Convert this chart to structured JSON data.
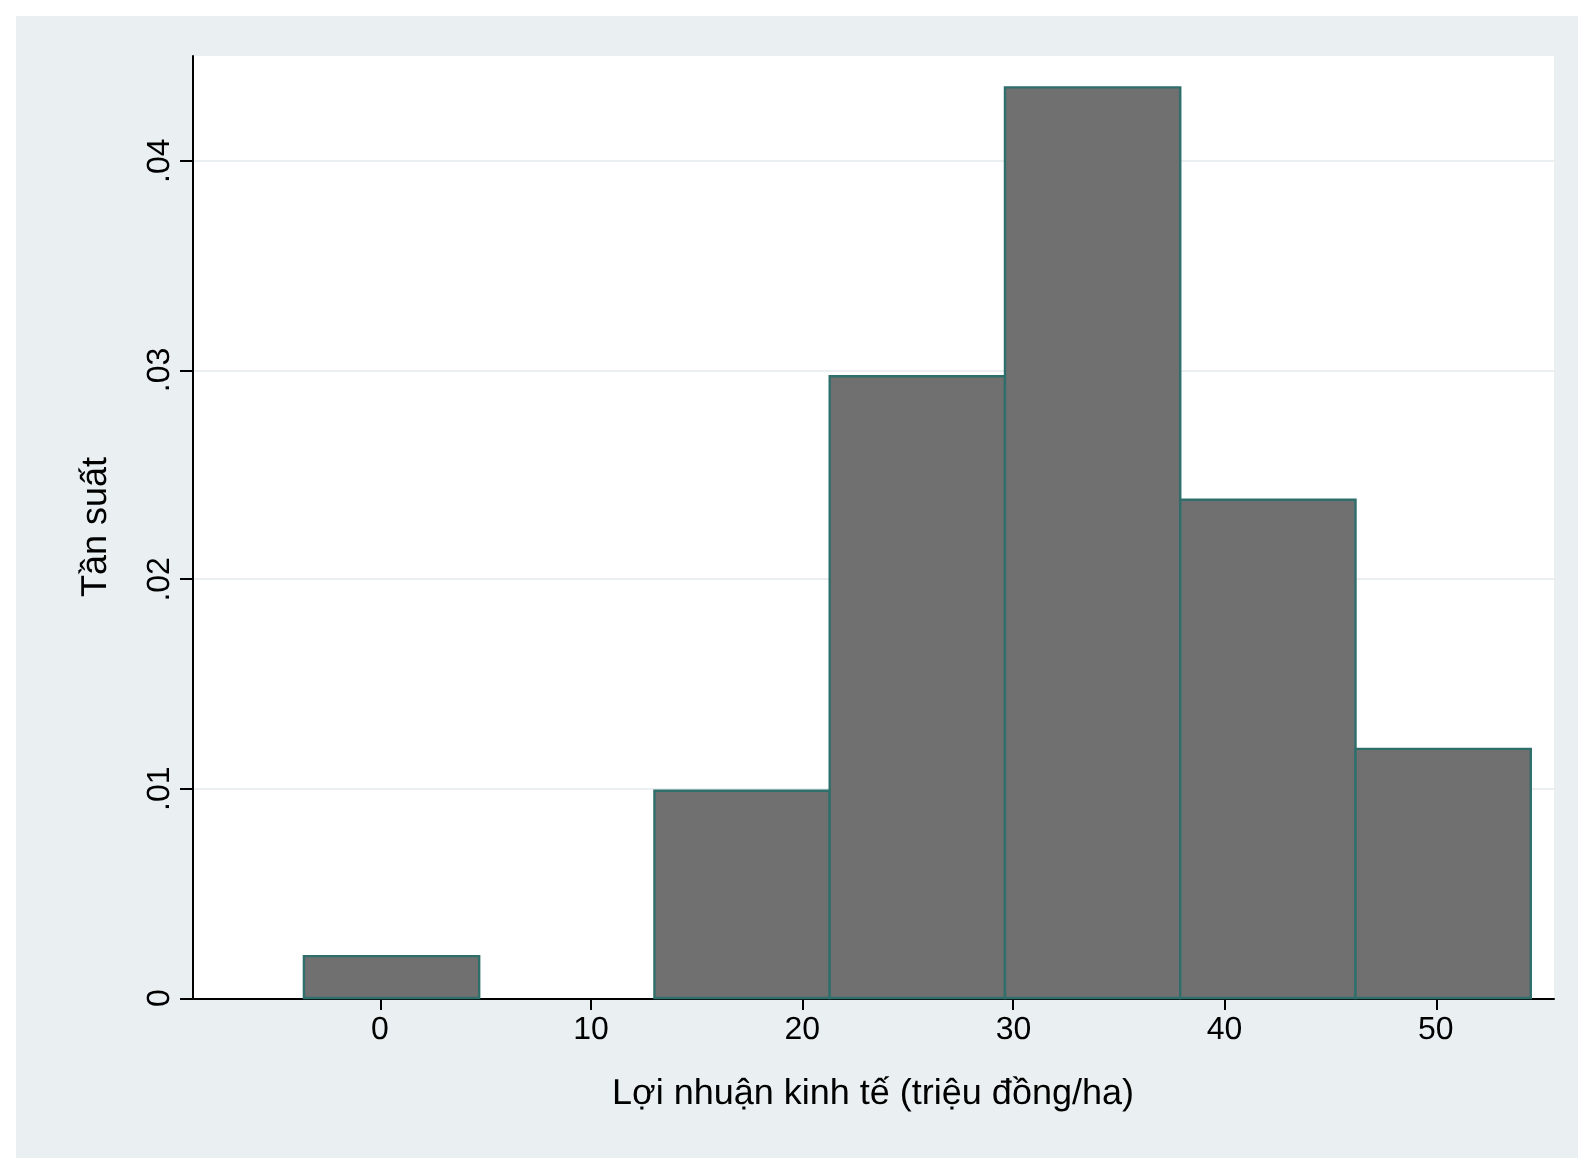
{
  "chart_data": {
    "type": "histogram",
    "xlabel": "Lợi nhuận kinh tế (triệu đồng/ha)",
    "ylabel": "Tần suất",
    "bins": [
      -3.6,
      4.7,
      13.0,
      21.3,
      29.6,
      37.9,
      46.2,
      54.5
    ],
    "values": [
      0.002,
      0,
      0.0099,
      0.0297,
      0.0435,
      0.0238,
      0.0119
    ],
    "color": "#707070",
    "xlim": [
      -8.9,
      55.6
    ],
    "xticks": [
      0,
      10,
      20,
      30,
      40,
      50
    ],
    "ylim": [
      0,
      0.045
    ],
    "yticks": [
      {
        "value": 0,
        "label": "0"
      },
      {
        "value": 0.01,
        "label": ".01"
      },
      {
        "value": 0.02,
        "label": ".02"
      },
      {
        "value": 0.03,
        "label": ".03"
      },
      {
        "value": 0.04,
        "label": ".04"
      }
    ],
    "grid": "y"
  }
}
